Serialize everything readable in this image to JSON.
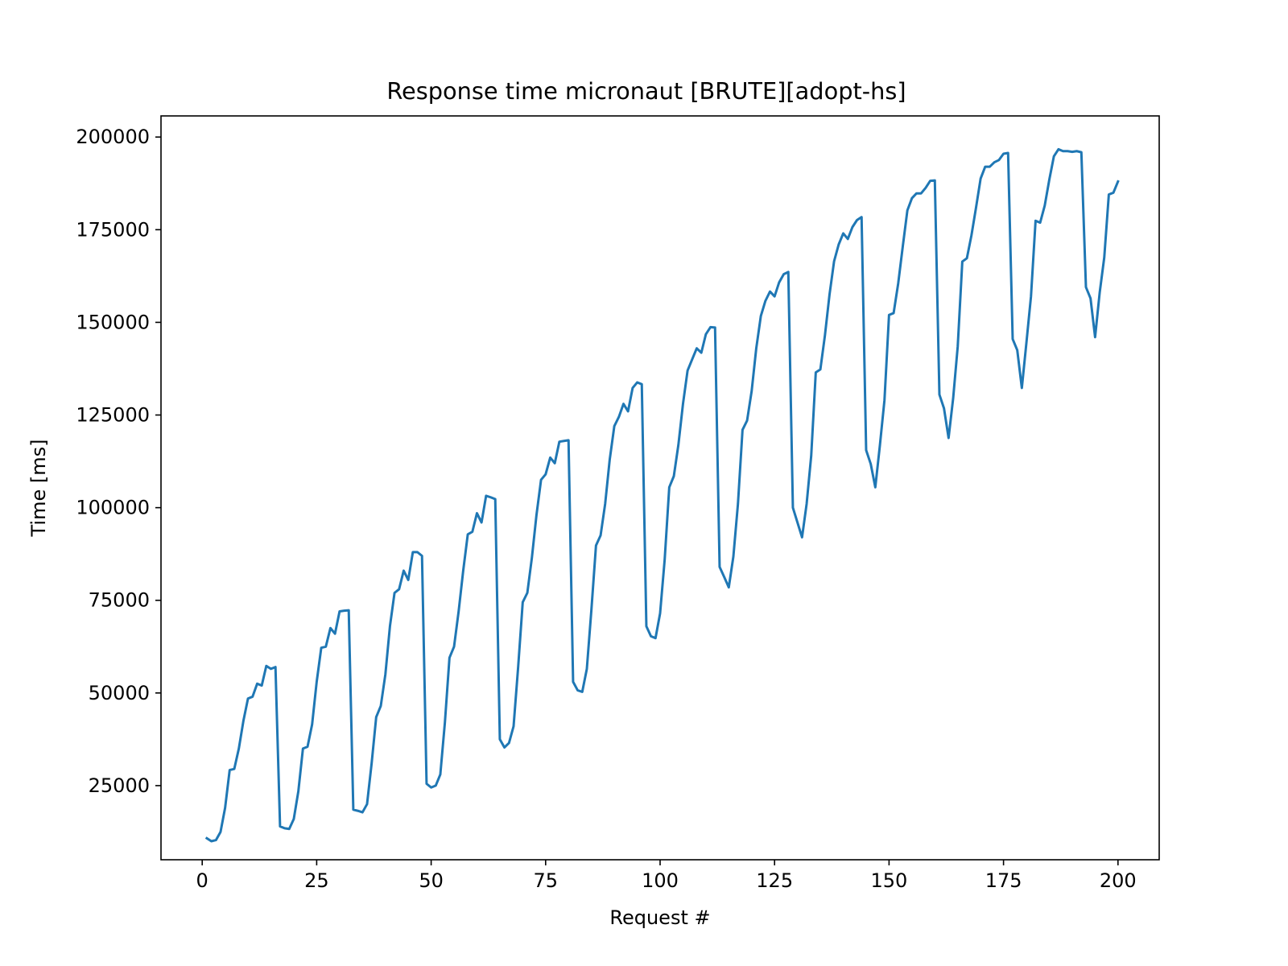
{
  "chart_data": {
    "type": "line",
    "title": "Response time micronaut [BRUTE][adopt-hs]",
    "xlabel": "Request #",
    "ylabel": "Time [ms]",
    "xlim": [
      -9,
      209
    ],
    "ylim": [
      5000,
      205700
    ],
    "xticks": [
      0,
      25,
      50,
      75,
      100,
      125,
      150,
      175,
      200
    ],
    "xtick_labels": [
      "0",
      "25",
      "50",
      "75",
      "100",
      "125",
      "150",
      "175",
      "200"
    ],
    "yticks": [
      25000,
      50000,
      75000,
      100000,
      125000,
      150000,
      175000,
      200000
    ],
    "ytick_labels": [
      "25000",
      "50000",
      "75000",
      "100000",
      "125000",
      "150000",
      "175000",
      "200000"
    ],
    "grid": false,
    "legend": "none",
    "series": [
      {
        "color": "#1f77b4",
        "x_start": 1,
        "x_step": 1,
        "values": [
          10800,
          10000,
          10300,
          12500,
          19000,
          29200,
          29500,
          35000,
          42500,
          48500,
          49000,
          52500,
          52000,
          57300,
          56500,
          57000,
          14000,
          13500,
          13300,
          16000,
          23500,
          35000,
          35500,
          41500,
          53000,
          62200,
          62500,
          67500,
          66000,
          72000,
          72200,
          72300,
          18500,
          18200,
          17800,
          20000,
          31000,
          43500,
          46500,
          55000,
          68000,
          77000,
          78000,
          83000,
          80500,
          88000,
          88000,
          87000,
          25500,
          24500,
          25000,
          28000,
          42000,
          59500,
          62500,
          72000,
          83000,
          92800,
          93500,
          98500,
          96000,
          103200,
          102800,
          102300,
          37500,
          35300,
          36500,
          41000,
          57000,
          74500,
          77000,
          86500,
          98000,
          107500,
          109000,
          113500,
          112000,
          117800,
          118000,
          118200,
          53000,
          50700,
          50300,
          56500,
          72500,
          89800,
          92500,
          101000,
          113000,
          122000,
          124500,
          128000,
          126000,
          132300,
          133800,
          133300,
          68000,
          65300,
          64800,
          71500,
          86000,
          105500,
          108500,
          117000,
          128000,
          137000,
          140000,
          143000,
          141800,
          146800,
          148700,
          148600,
          84000,
          81300,
          78500,
          86800,
          101000,
          121000,
          123500,
          131500,
          143000,
          151700,
          155800,
          158300,
          157000,
          160800,
          163000,
          163600,
          100000,
          96000,
          92000,
          101000,
          114000,
          136500,
          137300,
          146500,
          157500,
          166500,
          171000,
          174000,
          172500,
          175700,
          177600,
          178400,
          115500,
          111800,
          105500,
          116800,
          129000,
          152000,
          152500,
          160500,
          170500,
          180200,
          183500,
          184800,
          184800,
          186300,
          188200,
          188300,
          130500,
          126800,
          118800,
          129500,
          143500,
          166400,
          167300,
          173500,
          181000,
          188800,
          192000,
          192000,
          193200,
          193800,
          195500,
          195700,
          145500,
          142500,
          132300,
          144500,
          157000,
          177400,
          176900,
          181500,
          188500,
          194800,
          196700,
          196200,
          196200,
          196000,
          196200,
          195900,
          159500,
          156500,
          146000,
          158000,
          167500,
          184500,
          185000,
          188000
        ]
      }
    ]
  }
}
